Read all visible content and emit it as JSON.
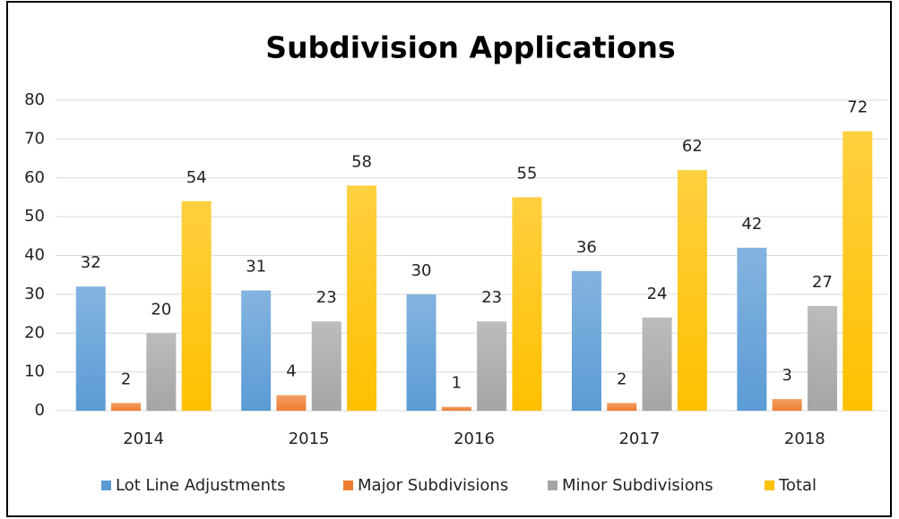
{
  "chart_data": {
    "type": "bar",
    "title": "Subdivision Applications",
    "categories": [
      "2014",
      "2015",
      "2016",
      "2017",
      "2018"
    ],
    "series": [
      {
        "name": "Lot Line Adjustments",
        "color": "#5b9bd5",
        "values": [
          32,
          31,
          30,
          36,
          42
        ]
      },
      {
        "name": "Major Subdivisions",
        "color": "#ed7d31",
        "values": [
          2,
          4,
          1,
          2,
          3
        ]
      },
      {
        "name": "Minor Subdivisions",
        "color": "#a5a5a5",
        "values": [
          20,
          23,
          23,
          24,
          27
        ]
      },
      {
        "name": "Total",
        "color": "#ffc000",
        "values": [
          54,
          58,
          55,
          62,
          72
        ]
      }
    ],
    "ylim": [
      0,
      80
    ],
    "yticks": [
      0,
      10,
      20,
      30,
      40,
      50,
      60,
      70,
      80
    ],
    "grid": true,
    "legend": "bottom"
  }
}
